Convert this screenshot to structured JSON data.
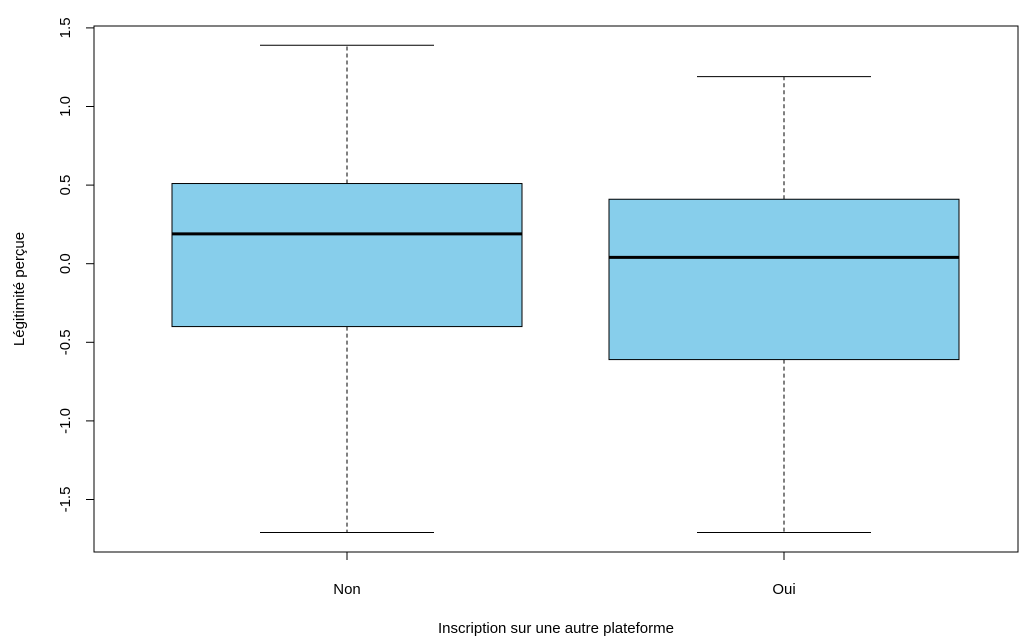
{
  "chart_data": {
    "type": "boxplot",
    "title": "",
    "xlabel": "Inscription sur une autre plateforme",
    "ylabel": "Légitimité perçue",
    "ylim": [
      -1.85,
      1.5
    ],
    "y_ticks": [
      -1.5,
      -1.0,
      -0.5,
      0.0,
      0.5,
      1.0,
      1.5
    ],
    "y_tick_labels": [
      "-1.5",
      "-1.0",
      "-0.5",
      "0.0",
      "0.5",
      "1.0",
      "1.5"
    ],
    "categories": [
      "Non",
      "Oui"
    ],
    "boxes": [
      {
        "category": "Non",
        "lower_whisker": -1.71,
        "q1": -0.4,
        "median": 0.19,
        "q3": 0.51,
        "upper_whisker": 1.39
      },
      {
        "category": "Oui",
        "lower_whisker": -1.71,
        "q1": -0.61,
        "median": 0.04,
        "q3": 0.41,
        "upper_whisker": 1.19
      }
    ],
    "colors": {
      "box_fill": "#87CEEB",
      "stroke": "#000000",
      "background": "#ffffff"
    },
    "grid": false,
    "legend": "none"
  }
}
